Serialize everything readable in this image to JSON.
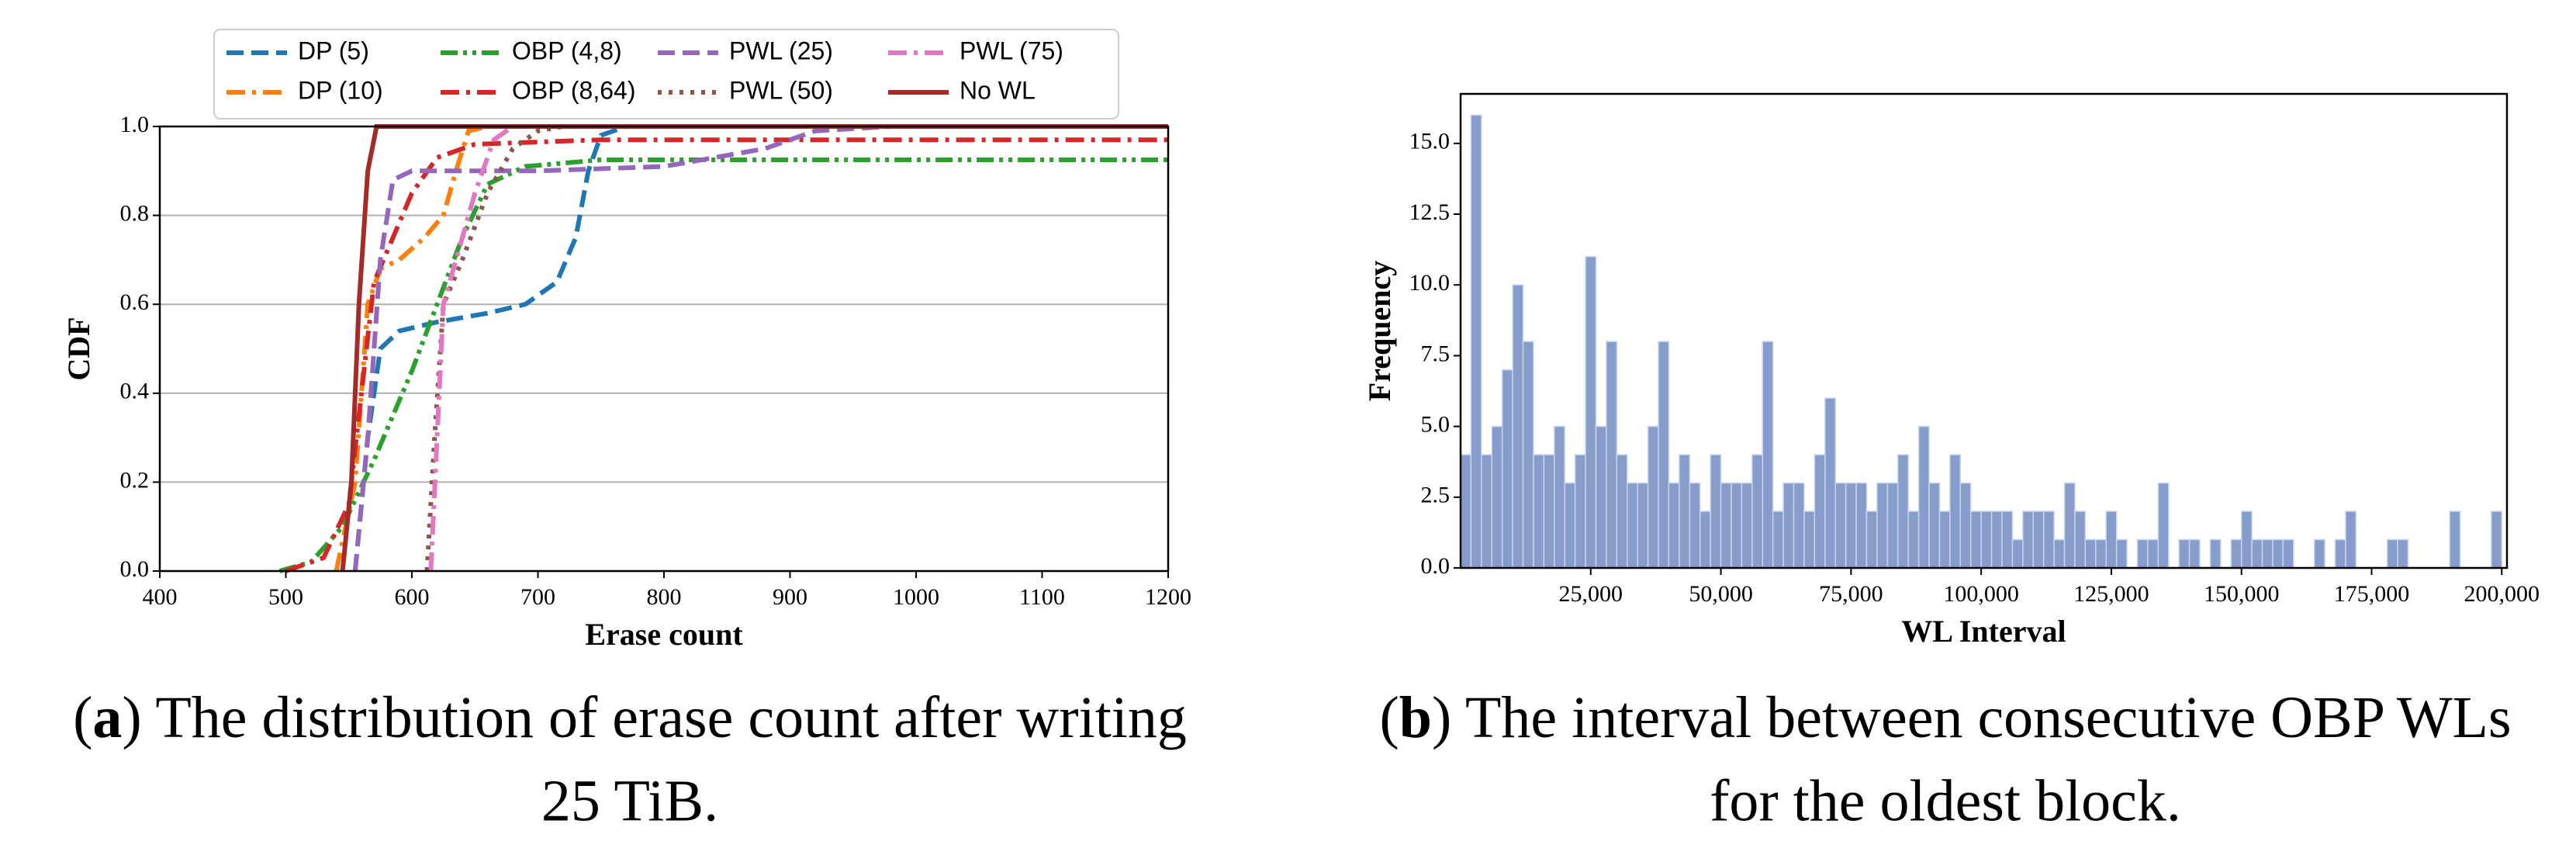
{
  "chart_data": [
    {
      "type": "line",
      "xlabel": "Erase count",
      "ylabel": "CDF",
      "xlim": [
        400,
        1200
      ],
      "ylim": [
        0,
        1
      ],
      "xticks": [
        400,
        500,
        600,
        700,
        800,
        900,
        1000,
        1100,
        1200
      ],
      "yticks": [
        {
          "value": 0,
          "label": "0.0"
        },
        {
          "value": 0.2,
          "label": "0.2"
        },
        {
          "value": 0.4,
          "label": "0.4"
        },
        {
          "value": 0.6,
          "label": "0.6"
        },
        {
          "value": 0.8,
          "label": "0.8"
        },
        {
          "value": 1,
          "label": "1.0"
        }
      ],
      "grid": true,
      "legend": "top",
      "series": [
        {
          "name": "DP (5)",
          "color": "#1f77b4",
          "dash": "dashed",
          "x": [
            555,
            565,
            575,
            590,
            620,
            660,
            690,
            715,
            730,
            740,
            750,
            770,
            1200
          ],
          "values": [
            0,
            0.3,
            0.5,
            0.54,
            0.56,
            0.58,
            0.6,
            0.65,
            0.75,
            0.9,
            0.98,
            1,
            1
          ]
        },
        {
          "name": "DP (10)",
          "color": "#ff7f0e",
          "dash": "dashdot",
          "x": [
            540,
            555,
            565,
            575,
            590,
            610,
            625,
            635,
            645,
            660,
            1200
          ],
          "values": [
            0,
            0.2,
            0.6,
            0.68,
            0.7,
            0.75,
            0.8,
            0.9,
            0.99,
            1,
            1
          ]
        },
        {
          "name": "OBP (4,8)",
          "color": "#2ca02c",
          "dash": "dashdotdot",
          "x": [
            495,
            520,
            545,
            570,
            600,
            620,
            640,
            660,
            690,
            750,
            1200
          ],
          "values": [
            0,
            0.02,
            0.1,
            0.25,
            0.45,
            0.6,
            0.75,
            0.87,
            0.91,
            0.925,
            0.925
          ]
        },
        {
          "name": "OBP (8,64)",
          "color": "#d62728",
          "dash": "dashdot",
          "x": [
            500,
            530,
            550,
            560,
            570,
            585,
            600,
            620,
            650,
            750,
            1200
          ],
          "values": [
            0,
            0.03,
            0.15,
            0.4,
            0.65,
            0.75,
            0.85,
            0.93,
            0.96,
            0.97,
            0.97
          ]
        },
        {
          "name": "PWL (25)",
          "color": "#9467bd",
          "dash": "dashed",
          "x": [
            555,
            565,
            575,
            585,
            600,
            700,
            800,
            880,
            920,
            980,
            1200
          ],
          "values": [
            0,
            0.3,
            0.7,
            0.88,
            0.9,
            0.9,
            0.91,
            0.95,
            0.99,
            1,
            1
          ]
        },
        {
          "name": "PWL (50)",
          "color": "#8c564b",
          "dash": "dotted",
          "x": [
            612,
            618,
            625,
            640,
            660,
            680,
            700,
            720,
            1200
          ],
          "values": [
            0,
            0.3,
            0.6,
            0.7,
            0.85,
            0.95,
            0.99,
            1,
            1
          ]
        },
        {
          "name": "PWL (75)",
          "color": "#e377c2",
          "dash": "dashdot",
          "x": [
            615,
            620,
            625,
            635,
            650,
            665,
            680,
            1200
          ],
          "values": [
            0,
            0.3,
            0.6,
            0.7,
            0.85,
            0.97,
            1,
            1
          ]
        },
        {
          "name": "No WL",
          "color": "#a52a2a",
          "dash": "solid",
          "x": [
            545,
            552,
            558,
            565,
            572,
            1200
          ],
          "values": [
            0,
            0.2,
            0.6,
            0.9,
            1,
            1
          ]
        }
      ],
      "caption": {
        "line1": [
          "(",
          "a",
          ") The distribution of erase count after writing"
        ],
        "line2": "25 TiB."
      }
    },
    {
      "type": "histogram",
      "xlabel": "WL Interval",
      "ylabel": "Frequency",
      "xlim": [
        0,
        201000
      ],
      "ylim": [
        0,
        16.75
      ],
      "xticks": [
        {
          "value": 25000,
          "label": "25,000"
        },
        {
          "value": 50000,
          "label": "50,000"
        },
        {
          "value": 75000,
          "label": "75,000"
        },
        {
          "value": 100000,
          "label": "100,000"
        },
        {
          "value": 125000,
          "label": "125,000"
        },
        {
          "value": 150000,
          "label": "150,000"
        },
        {
          "value": 175000,
          "label": "175,000"
        },
        {
          "value": 200000,
          "label": "200,000"
        }
      ],
      "yticks": [
        {
          "value": 0,
          "label": "0.0"
        },
        {
          "value": 2.5,
          "label": "2.5"
        },
        {
          "value": 5,
          "label": "5.0"
        },
        {
          "value": 7.5,
          "label": "7.5"
        },
        {
          "value": 10,
          "label": "10.0"
        },
        {
          "value": 12.5,
          "label": "12.5"
        },
        {
          "value": 15,
          "label": "15.0"
        }
      ],
      "color": "#869dcc",
      "bins": [
        0,
        2000,
        4000,
        6000,
        8000,
        10000,
        12000,
        14000,
        16000,
        18000,
        20000,
        22000,
        24000,
        26000,
        28000,
        30000,
        32000,
        34000,
        36000,
        38000,
        40000,
        42000,
        44000,
        46000,
        48000,
        50000,
        52000,
        54000,
        56000,
        58000,
        60000,
        62000,
        64000,
        66000,
        68000,
        70000,
        72000,
        74000,
        76000,
        78000,
        80000,
        82000,
        84000,
        86000,
        88000,
        90000,
        92000,
        94000,
        96000,
        98000,
        100000,
        102000,
        104000,
        106000,
        108000,
        110000,
        112000,
        114000,
        116000,
        118000,
        120000,
        122000,
        124000,
        126000,
        128000,
        130000,
        132000,
        134000,
        136000,
        138000,
        140000,
        142000,
        144000,
        146000,
        148000,
        150000,
        152000,
        154000,
        156000,
        158000,
        160000,
        162000,
        164000,
        166000,
        168000,
        170000,
        172000,
        174000,
        176000,
        178000,
        180000,
        182000,
        184000,
        186000,
        188000,
        190000,
        192000,
        194000,
        196000,
        198000,
        200000
      ],
      "counts": [
        4,
        16,
        4,
        5,
        7,
        10,
        8,
        4,
        4,
        5,
        3,
        4,
        11,
        5,
        8,
        4,
        3,
        3,
        5,
        8,
        3,
        4,
        3,
        2,
        4,
        3,
        3,
        3,
        4,
        8,
        2,
        3,
        3,
        2,
        4,
        6,
        3,
        3,
        3,
        2,
        3,
        3,
        4,
        2,
        5,
        3,
        2,
        4,
        3,
        2,
        2,
        2,
        2,
        1,
        2,
        2,
        2,
        1,
        3,
        2,
        1,
        1,
        2,
        1,
        0,
        1,
        1,
        3,
        0,
        1,
        1,
        0,
        1,
        0,
        1,
        2,
        1,
        1,
        1,
        1,
        0,
        0,
        1,
        0,
        1,
        2,
        0,
        0,
        0,
        1,
        1,
        0,
        0,
        0,
        0,
        2,
        0,
        0,
        0,
        2
      ],
      "caption": {
        "line1": [
          "(",
          "b",
          ") The interval between consecutive OBP WLs"
        ],
        "line2": "for the oldest block."
      }
    }
  ]
}
